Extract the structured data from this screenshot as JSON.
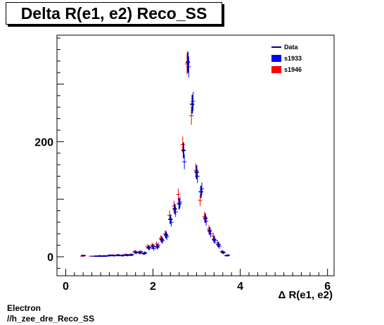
{
  "title": "Delta R(e1, e2) Reco_SS",
  "footer": {
    "line1": "Electron",
    "line2": "//h_zee_dre_Reco_SS"
  },
  "chart_data": {
    "type": "scatter",
    "title": "Delta R(e1, e2) Reco_SS",
    "xlabel": "Δ R(e1, e2)",
    "ylabel": "",
    "xlim": [
      -0.2,
      6.15
    ],
    "ylim": [
      -33,
      385
    ],
    "xticks_major": [
      0,
      2,
      4,
      6
    ],
    "yticks_labeled": [
      0,
      200
    ],
    "grid": false,
    "legend_position": "top-right",
    "legend": [
      {
        "label": "Data",
        "kind": "line",
        "color": "#000099"
      },
      {
        "label": "s1933",
        "kind": "box",
        "color": "#0000ff"
      },
      {
        "label": "s1946",
        "kind": "box",
        "color": "#ff0000"
      }
    ],
    "bin_width": 0.1,
    "x": [
      0.4,
      0.5,
      0.6,
      0.7,
      0.8,
      0.9,
      1.0,
      1.1,
      1.2,
      1.3,
      1.4,
      1.5,
      1.6,
      1.7,
      1.8,
      1.9,
      2.0,
      2.1,
      2.2,
      2.3,
      2.4,
      2.5,
      2.6,
      2.7,
      2.8,
      2.9,
      3.0,
      3.1,
      3.2,
      3.3,
      3.4,
      3.5,
      3.6,
      3.7,
      3.8,
      3.9,
      4.0,
      4.1,
      4.2
    ],
    "series": [
      {
        "name": "Data",
        "color": "#000099",
        "values": [
          2,
          0,
          0,
          1,
          1,
          1,
          2,
          2,
          3,
          2,
          3,
          3,
          8,
          7,
          6,
          16,
          18,
          17,
          30,
          38,
          65,
          83,
          92,
          185,
          338,
          265,
          147,
          113,
          67,
          45,
          30,
          21,
          8,
          2,
          0,
          0,
          0,
          0,
          0
        ],
        "errors": [
          1.4,
          0,
          0,
          1,
          1,
          1,
          1.4,
          1.4,
          1.7,
          1.4,
          1.7,
          1.7,
          2.8,
          2.6,
          2.4,
          4,
          4.2,
          4.1,
          5.5,
          6.2,
          8.1,
          9.1,
          9.6,
          13.6,
          18.4,
          16.3,
          12.1,
          10.6,
          8.2,
          6.7,
          5.5,
          4.6,
          2.8,
          1.4,
          0,
          0,
          0,
          0,
          0
        ]
      },
      {
        "name": "s1933",
        "color": "#0000ff",
        "values": [
          2,
          0,
          1,
          1,
          1,
          1,
          3,
          2,
          2,
          3,
          2,
          4,
          7,
          9,
          7,
          15,
          14,
          20,
          28,
          35,
          60,
          78,
          95,
          165,
          330,
          270,
          140,
          118,
          62,
          40,
          28,
          18,
          7,
          3,
          0,
          0,
          0,
          0,
          0
        ],
        "errors": [
          1.4,
          0,
          1,
          1,
          1,
          1,
          1.7,
          1.4,
          1.4,
          1.7,
          1.4,
          2,
          2.6,
          3,
          2.6,
          3.9,
          3.7,
          4.5,
          5.3,
          5.9,
          7.7,
          8.8,
          9.7,
          12.8,
          18.2,
          16.4,
          11.8,
          10.9,
          7.9,
          6.3,
          5.3,
          4.2,
          2.6,
          1.7,
          0,
          0,
          0,
          0,
          0
        ]
      },
      {
        "name": "s1946",
        "color": "#ff0000",
        "values": [
          1,
          0,
          1,
          1,
          2,
          2,
          2,
          3,
          2,
          2,
          4,
          4,
          9,
          8,
          5,
          18,
          20,
          22,
          32,
          40,
          72,
          88,
          108,
          195,
          335,
          245,
          150,
          98,
          70,
          48,
          36,
          24,
          9,
          2,
          0,
          0,
          0,
          0,
          0
        ],
        "errors": [
          1,
          0,
          1,
          1,
          1.4,
          1.4,
          1.4,
          1.7,
          1.4,
          1.4,
          2,
          2,
          3,
          2.8,
          2.2,
          4.2,
          4.5,
          4.7,
          5.7,
          6.3,
          8.5,
          9.4,
          10.4,
          14,
          18.3,
          15.7,
          12.2,
          9.9,
          8.4,
          6.9,
          6,
          4.9,
          3,
          1.4,
          0,
          0,
          0,
          0,
          0
        ]
      }
    ]
  }
}
